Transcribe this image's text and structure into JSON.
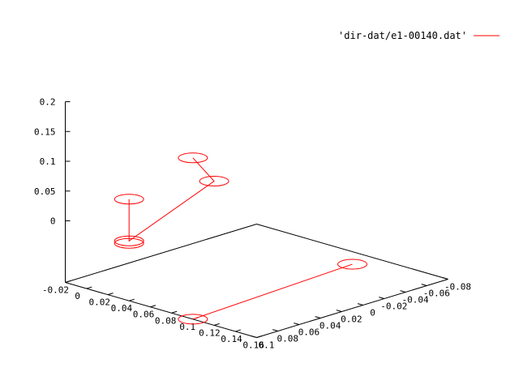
{
  "chart_data": {
    "type": "line3d",
    "title": "",
    "grid": false,
    "legend_position": "top-right",
    "series": [
      {
        "name": "'dir-dat/e1-00140.dat'",
        "color": "#ff0000",
        "marker": "circle",
        "segments": [
          [
            {
              "x": 0.09,
              "y": -0.06,
              "z": 0.0
            },
            {
              "x": 0.1,
              "y": 0.1,
              "z": 0.0
            }
          ],
          [
            {
              "x": 0.0,
              "y": 0.0,
              "z": 0.165
            },
            {
              "x": 0.0,
              "y": -0.02,
              "z": 0.115
            },
            {
              "x": 0.03,
              "y": 0.09,
              "z": 0.09
            },
            {
              "x": 0.03,
              "y": 0.09,
              "z": 0.09
            },
            {
              "x": 0.03,
              "y": 0.09,
              "z": 0.16
            }
          ]
        ]
      }
    ],
    "x_axis": {
      "ticks": [
        "-0.02",
        "0",
        "0.02",
        "0.04",
        "0.06",
        "0.08",
        "0.1",
        "0.12",
        "0.14",
        "0.16"
      ],
      "range": [
        -0.02,
        0.16
      ]
    },
    "y_axis": {
      "ticks": [
        "0.1",
        "0.08",
        "0.06",
        "0.04",
        "0.02",
        "0",
        "-0.02",
        "-0.04",
        "-0.06",
        "-0.08"
      ],
      "range": [
        -0.08,
        0.1
      ]
    },
    "z_axis": {
      "ticks": [
        "0",
        "0.05",
        "0.1",
        "0.15",
        "0.2"
      ],
      "range": [
        0,
        0.2
      ]
    }
  }
}
